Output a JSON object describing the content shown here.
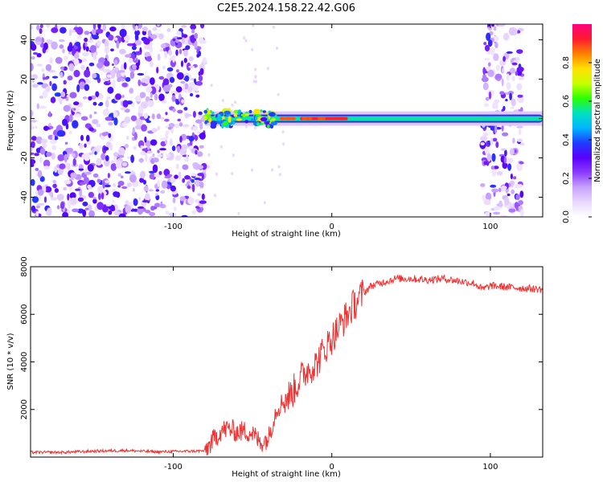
{
  "title": "C2E5.2024.158.22.42.G06",
  "chart_data": [
    {
      "type": "heatmap",
      "title": "C2E5.2024.158.22.42.G06",
      "xlabel": "Height of straight line (km)",
      "ylabel": "Frequency (Hz)",
      "xlim": [
        -190,
        133
      ],
      "ylim": [
        -50,
        48
      ],
      "x_ticks": [
        -100,
        0,
        100
      ],
      "x_tick_labels": [
        "-100",
        "0",
        "100"
      ],
      "y_ticks": [
        -40,
        -20,
        0,
        20,
        40
      ],
      "y_tick_labels": [
        "-40",
        "-20",
        "0",
        "20",
        "40"
      ],
      "colorbar": {
        "label": "Normalized spectral amplitude",
        "range": [
          0,
          1
        ],
        "ticks": [
          0.0,
          0.2,
          0.4,
          0.6,
          0.8
        ],
        "tick_labels": [
          "0.0",
          "0.2",
          "0.4",
          "0.6",
          "0.8"
        ],
        "colormap": [
          "#ffffff",
          "#e9d8ff",
          "#c7a2ff",
          "#8a3bff",
          "#5a00ff",
          "#1f3cff",
          "#00b7ff",
          "#00e0c0",
          "#2bff00",
          "#c9ff00",
          "#ffe000",
          "#ff8000",
          "#ff1a2e",
          "#ff007f"
        ]
      },
      "features": {
        "noise_regions_x": [
          [
            -190,
            -80
          ],
          [
            95,
            120
          ]
        ],
        "carrier_band_x": [
          -80,
          133
        ],
        "carrier_frequency": 0,
        "strongest_x": [
          -20,
          10
        ]
      }
    },
    {
      "type": "line",
      "xlabel": "Height of straight line (km)",
      "ylabel": "SNR (10 * v/v)",
      "xlim": [
        -190,
        133
      ],
      "ylim": [
        0,
        8000
      ],
      "x_ticks": [
        -100,
        0,
        100
      ],
      "x_tick_labels": [
        "-100",
        "0",
        "100"
      ],
      "y_ticks": [
        2000,
        4000,
        6000,
        8000
      ],
      "y_tick_labels": [
        "2000",
        "4000",
        "6000",
        "8000"
      ],
      "line_color": "#ee3333",
      "x": [
        -190,
        -170,
        -150,
        -130,
        -110,
        -90,
        -80,
        -75,
        -70,
        -65,
        -60,
        -55,
        -50,
        -45,
        -40,
        -35,
        -30,
        -25,
        -20,
        -15,
        -10,
        -5,
        0,
        5,
        10,
        15,
        20,
        25,
        30,
        35,
        40,
        50,
        60,
        70,
        80,
        90,
        95,
        100,
        110,
        120,
        133
      ],
      "y": [
        200,
        200,
        250,
        280,
        220,
        250,
        260,
        700,
        1100,
        1200,
        1050,
        1100,
        1000,
        600,
        800,
        2000,
        2400,
        2700,
        3300,
        3700,
        3900,
        4500,
        5000,
        5500,
        6000,
        6500,
        6900,
        7200,
        7300,
        7400,
        7500,
        7500,
        7450,
        7500,
        7400,
        7300,
        7050,
        7200,
        7150,
        7100,
        7050
      ]
    }
  ]
}
